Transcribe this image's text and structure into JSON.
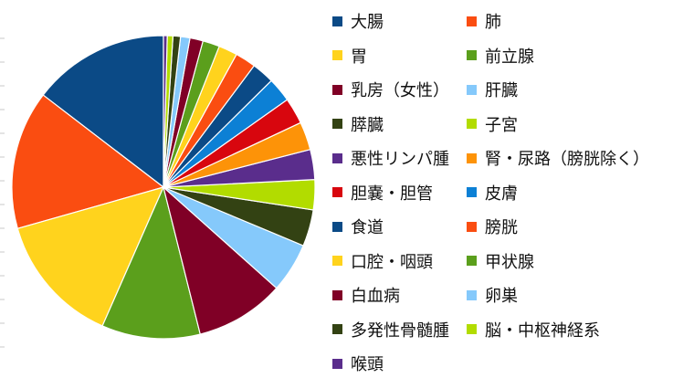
{
  "chart_data": {
    "type": "pie",
    "title": "",
    "start_angle_deg": 0,
    "direction": "clockwise",
    "slices": [
      {
        "label": "大腸",
        "value": 14.6,
        "color": "#0b4a86"
      },
      {
        "label": "肺",
        "value": 14.8,
        "color": "#fa4d11"
      },
      {
        "label": "胃",
        "value": 14.0,
        "color": "#ffd31d"
      },
      {
        "label": "前立腺",
        "value": 10.5,
        "color": "#5b9f1c"
      },
      {
        "label": "乳房（女性）",
        "value": 9.5,
        "color": "#800026"
      },
      {
        "label": "肝臓",
        "value": 5.3,
        "color": "#85c9fb"
      },
      {
        "label": "膵臓",
        "value": 3.9,
        "color": "#334213"
      },
      {
        "label": "子宮",
        "value": 3.2,
        "color": "#b2dc00"
      },
      {
        "label": "悪性リンパ腫",
        "value": 3.2,
        "color": "#5a2d8c"
      },
      {
        "label": "腎・尿路（膀胱除く）",
        "value": 3.0,
        "color": "#fd9308"
      },
      {
        "label": "胆嚢・胆管",
        "value": 2.8,
        "color": "#d8060e"
      },
      {
        "label": "皮膚",
        "value": 2.6,
        "color": "#0c80d5"
      },
      {
        "label": "食道",
        "value": 2.4,
        "color": "#0b4a86"
      },
      {
        "label": "膀胱",
        "value": 2.2,
        "color": "#fa4d11"
      },
      {
        "label": "口腔・咽頭",
        "value": 2.0,
        "color": "#ffd31d"
      },
      {
        "label": "甲状腺",
        "value": 1.8,
        "color": "#5b9f1c"
      },
      {
        "label": "白血病",
        "value": 1.4,
        "color": "#800026"
      },
      {
        "label": "卵巣",
        "value": 1.0,
        "color": "#85c9fb"
      },
      {
        "label": "多発性骨髄腫",
        "value": 0.8,
        "color": "#334213"
      },
      {
        "label": "脳・中枢神経系",
        "value": 0.6,
        "color": "#b2dc00"
      },
      {
        "label": "喉頭",
        "value": 0.4,
        "color": "#5a2d8c"
      }
    ],
    "legend_position": "right",
    "legend_columns": 2
  }
}
